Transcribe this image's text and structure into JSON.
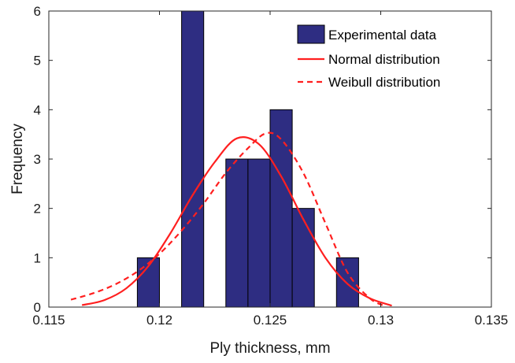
{
  "chart_data": {
    "type": "bar",
    "xlabel": "Ply thickness, mm",
    "ylabel": "Frequency",
    "xlim": [
      0.115,
      0.135
    ],
    "ylim": [
      0,
      6
    ],
    "xticks": [
      "0.115",
      "0.12",
      "0.125",
      "0.13",
      "0.135"
    ],
    "yticks": [
      "0",
      "1",
      "2",
      "3",
      "4",
      "5",
      "6"
    ],
    "grid": false,
    "legend_position": "top-right",
    "bar_width": 0.001,
    "series": [
      {
        "name": "Experimental data",
        "kind": "bar",
        "color": "#2e2d82",
        "bars": [
          {
            "x": 0.1195,
            "value": 1
          },
          {
            "x": 0.1215,
            "value": 6
          },
          {
            "x": 0.1235,
            "value": 3
          },
          {
            "x": 0.1245,
            "value": 3
          },
          {
            "x": 0.1255,
            "value": 4
          },
          {
            "x": 0.1265,
            "value": 2
          },
          {
            "x": 0.1285,
            "value": 1
          }
        ]
      },
      {
        "name": "Normal distribution",
        "kind": "line",
        "color": "#ff1f1f",
        "dash": false,
        "points": [
          [
            0.1165,
            0.04
          ],
          [
            0.1175,
            0.14
          ],
          [
            0.1185,
            0.38
          ],
          [
            0.1195,
            0.83
          ],
          [
            0.1205,
            1.5
          ],
          [
            0.1215,
            2.27
          ],
          [
            0.1225,
            2.94
          ],
          [
            0.1235,
            3.42
          ],
          [
            0.1245,
            3.3
          ],
          [
            0.1255,
            2.65
          ],
          [
            0.1265,
            1.78
          ],
          [
            0.1275,
            1.0
          ],
          [
            0.1285,
            0.47
          ],
          [
            0.1295,
            0.18
          ],
          [
            0.1305,
            0.03
          ]
        ]
      },
      {
        "name": "Weibull distribution",
        "kind": "line",
        "color": "#ff1f1f",
        "dash": true,
        "points": [
          [
            0.116,
            0.15
          ],
          [
            0.117,
            0.28
          ],
          [
            0.118,
            0.46
          ],
          [
            0.119,
            0.72
          ],
          [
            0.12,
            1.08
          ],
          [
            0.121,
            1.55
          ],
          [
            0.122,
            2.1
          ],
          [
            0.123,
            2.72
          ],
          [
            0.124,
            3.22
          ],
          [
            0.1248,
            3.52
          ],
          [
            0.1255,
            3.4
          ],
          [
            0.1265,
            2.72
          ],
          [
            0.1275,
            1.7
          ],
          [
            0.1285,
            0.7
          ],
          [
            0.1295,
            0.18
          ],
          [
            0.1302,
            0.02
          ]
        ]
      }
    ]
  }
}
